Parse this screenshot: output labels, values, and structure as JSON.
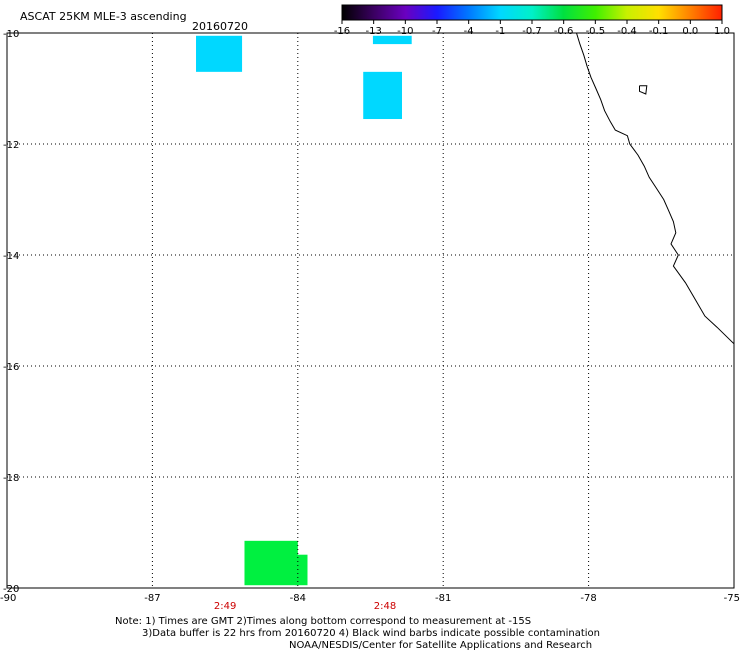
{
  "header": {
    "title": "ASCAT 25KM MLE-3 ascending",
    "date": "20160720"
  },
  "colorbar": {
    "labels": [
      "-16",
      "-13",
      "-10",
      "-7",
      "-4",
      "-1",
      "-0.7",
      "-0.6",
      "-0.5",
      "-0.4",
      "-0.1",
      "0.0",
      "1.0"
    ],
    "stops": [
      "#000000",
      "#3a0060",
      "#6a00c0",
      "#1a1aff",
      "#0078ff",
      "#00d8ff",
      "#00f0c8",
      "#00e040",
      "#40f000",
      "#c8f000",
      "#ffe000",
      "#ff8000",
      "#ff2000"
    ]
  },
  "map": {
    "lon_range": [
      -90,
      -75
    ],
    "lat_range": [
      -20,
      -10
    ],
    "lon_ticks": [
      -90,
      -87,
      -84,
      -81,
      -78,
      -75
    ],
    "lon_tick_labels": [
      "-90",
      "-87",
      "-84",
      "-81",
      "-78",
      "-75"
    ],
    "lat_ticks": [
      -10,
      -12,
      -14,
      -16,
      -18,
      -20
    ],
    "lat_tick_labels": [
      "-10",
      "-12",
      "-14",
      "-16",
      "-18",
      "-20"
    ],
    "grid": true,
    "times": [
      {
        "lon": -85.5,
        "label": "2:49"
      },
      {
        "lon": -82.2,
        "label": "2:48"
      }
    ],
    "patches": [
      {
        "lon0": -86.1,
        "lon1": -85.15,
        "lat0": -10.05,
        "lat1": -10.7,
        "color": "#00d8ff"
      },
      {
        "lon0": -82.45,
        "lon1": -81.65,
        "lat0": -10.05,
        "lat1": -10.2,
        "color": "#00d8ff"
      },
      {
        "lon0": -82.65,
        "lon1": -81.85,
        "lat0": -10.7,
        "lat1": -11.55,
        "color": "#00d8ff"
      },
      {
        "lon0": -85.1,
        "lon1": -84.0,
        "lat0": -19.15,
        "lat1": -19.95,
        "color": "#00f040"
      },
      {
        "lon0": -84.05,
        "lon1": -83.8,
        "lat0": -19.4,
        "lat1": -19.95,
        "color": "#00f040"
      }
    ],
    "coastline": [
      [
        -78.25,
        -10.0
      ],
      [
        -78.18,
        -10.2
      ],
      [
        -78.1,
        -10.4
      ],
      [
        -78.03,
        -10.6
      ],
      [
        -77.95,
        -10.8
      ],
      [
        -77.85,
        -11.0
      ],
      [
        -77.75,
        -11.2
      ],
      [
        -77.67,
        -11.4
      ],
      [
        -77.55,
        -11.6
      ],
      [
        -77.45,
        -11.75
      ],
      [
        -77.2,
        -11.85
      ],
      [
        -77.15,
        -12.0
      ],
      [
        -76.98,
        -12.2
      ],
      [
        -76.85,
        -12.4
      ],
      [
        -76.75,
        -12.6
      ],
      [
        -76.6,
        -12.8
      ],
      [
        -76.45,
        -13.0
      ],
      [
        -76.35,
        -13.2
      ],
      [
        -76.25,
        -13.4
      ],
      [
        -76.2,
        -13.6
      ],
      [
        -76.3,
        -13.8
      ],
      [
        -76.15,
        -14.0
      ],
      [
        -76.25,
        -14.2
      ],
      [
        -76.0,
        -14.5
      ],
      [
        -75.8,
        -14.8
      ],
      [
        -75.6,
        -15.1
      ],
      [
        -75.35,
        -15.3
      ],
      [
        -75.0,
        -15.6
      ]
    ],
    "island": [
      [
        -76.95,
        -10.95
      ],
      [
        -76.8,
        -10.95
      ],
      [
        -76.82,
        -11.1
      ],
      [
        -76.95,
        -11.05
      ],
      [
        -76.95,
        -10.95
      ]
    ]
  },
  "notes": {
    "line1": "Note: 1) Times are GMT 2)Times along bottom correspond to measurement at -15S",
    "line2": "3)Data buffer is 22 hrs from 20160720 4) Black wind barbs indicate possible contamination",
    "line3": "NOAA/NESDIS/Center for Satellite Applications and Research"
  }
}
